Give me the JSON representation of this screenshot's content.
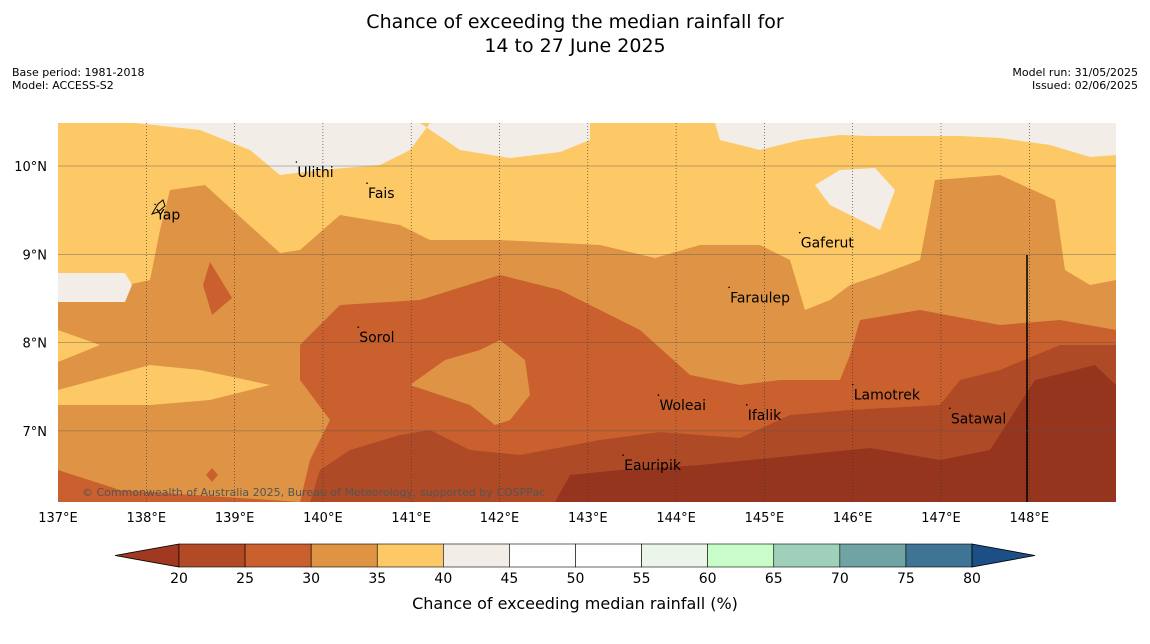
{
  "title": {
    "line1": "Chance of exceeding the median rainfall for",
    "line2": "14 to 27 June 2025"
  },
  "meta": {
    "base_period": "Base period: 1981-2018",
    "model": "Model: ACCESS-S2",
    "model_run": "Model run: 31/05/2025",
    "issued": "Issued: 02/06/2025"
  },
  "map": {
    "copyright": "© Commonwealth of Australia 2025, Bureau of Meteorology, supported by COSPPac",
    "lon_range": [
      137,
      149
    ],
    "lat_range": [
      6.2,
      10.5
    ],
    "lon_ticks": [
      {
        "value": 137,
        "label": "137°E"
      },
      {
        "value": 138,
        "label": "138°E"
      },
      {
        "value": 139,
        "label": "139°E"
      },
      {
        "value": 140,
        "label": "140°E"
      },
      {
        "value": 141,
        "label": "141°E"
      },
      {
        "value": 142,
        "label": "142°E"
      },
      {
        "value": 143,
        "label": "143°E"
      },
      {
        "value": 144,
        "label": "144°E"
      },
      {
        "value": 145,
        "label": "145°E"
      },
      {
        "value": 146,
        "label": "146°E"
      },
      {
        "value": 147,
        "label": "147°E"
      },
      {
        "value": 148,
        "label": "148°E"
      }
    ],
    "lat_ticks": [
      {
        "value": 10,
        "label": "10°N"
      },
      {
        "value": 9,
        "label": "9°N"
      },
      {
        "value": 8,
        "label": "8°N"
      },
      {
        "value": 7,
        "label": "7°N"
      }
    ],
    "places": [
      {
        "name": "Ulithi",
        "lon": 139.7,
        "lat": 10.0
      },
      {
        "name": "Fais",
        "lon": 140.5,
        "lat": 9.76
      },
      {
        "name": "Yap",
        "lon": 138.1,
        "lat": 9.52
      },
      {
        "name": "Gaferut",
        "lon": 145.4,
        "lat": 9.2
      },
      {
        "name": "Faraulep",
        "lon": 144.6,
        "lat": 8.58
      },
      {
        "name": "Sorol",
        "lon": 140.4,
        "lat": 8.13
      },
      {
        "name": "Lamotrek",
        "lon": 146.0,
        "lat": 7.48
      },
      {
        "name": "Woleai",
        "lon": 143.8,
        "lat": 7.36
      },
      {
        "name": "Ifalik",
        "lon": 144.8,
        "lat": 7.25
      },
      {
        "name": "Satawal",
        "lon": 147.1,
        "lat": 7.21
      },
      {
        "name": "Eauripik",
        "lon": 143.4,
        "lat": 6.68
      }
    ]
  },
  "colorbar": {
    "label": "Chance of exceeding median rainfall (%)",
    "ticks": [
      "20",
      "25",
      "30",
      "35",
      "40",
      "45",
      "50",
      "55",
      "60",
      "65",
      "70",
      "75",
      "80"
    ],
    "colors": [
      "#a0391f",
      "#b24a26",
      "#c9602e",
      "#df9444",
      "#fdc966",
      "#f2ede6",
      "#ffffff",
      "#ffffff",
      "#ebf5ea",
      "#c8fcc8",
      "#9fd1ba",
      "#6fa3a4",
      "#3f7494",
      "#1c4f86"
    ],
    "colors_note_low": "below 20 arrow",
    "colors_note_high": "above 80 arrow"
  },
  "palette": {
    "c20": "#96351e",
    "c25": "#af4a27",
    "c30": "#c9602e",
    "c35": "#de9444",
    "c40": "#fdc966",
    "c45": "#f2ede7"
  }
}
